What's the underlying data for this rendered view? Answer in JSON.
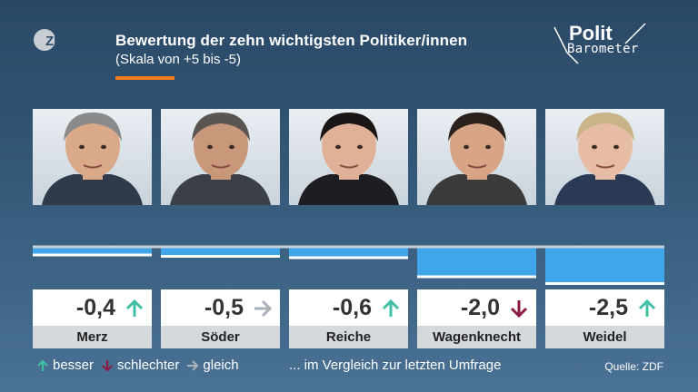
{
  "header": {
    "logo": "ZDF",
    "title": "Bewertung der zehn wichtigsten Politiker/innen",
    "subtitle": "(Skala von +5 bis -5)",
    "brand_line1": "Polit",
    "brand_line2": "Barometer"
  },
  "colors": {
    "bar": "#3fa6ea",
    "accent": "#f07c1a",
    "better": "#3fbfa4",
    "worse": "#8a1c44",
    "same": "#a9b1b8"
  },
  "chart_data": {
    "type": "bar",
    "title": "Bewertung der zehn wichtigsten Politiker/innen",
    "subtitle": "(Skala von +5 bis -5)",
    "categories": [
      "Merz",
      "Söder",
      "Reiche",
      "Wagenknecht",
      "Weidel"
    ],
    "values": [
      -0.4,
      -0.5,
      -0.6,
      -2.0,
      -2.5
    ],
    "labels": [
      "-0,4",
      "-0,5",
      "-0,6",
      "-2,0",
      "-2,5"
    ],
    "trends": [
      "up",
      "right",
      "up",
      "down",
      "up"
    ],
    "ylim": [
      -5,
      5
    ]
  },
  "legend": {
    "better": "besser",
    "worse": "schlechter",
    "same": "gleich",
    "note": "... im Vergleich zur letzten Umfrage"
  },
  "source": "Quelle: ZDF"
}
